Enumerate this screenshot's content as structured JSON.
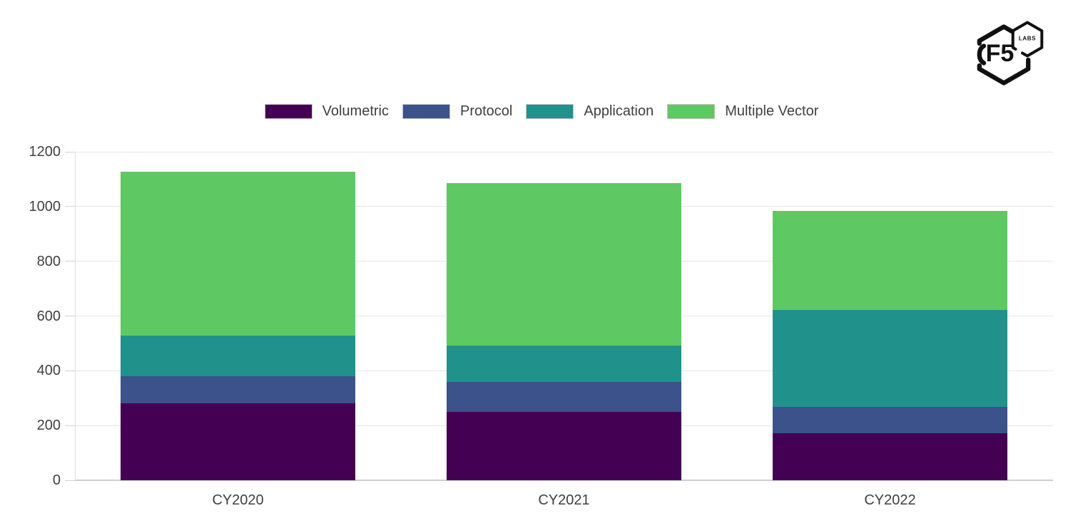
{
  "brand": {
    "name": "F5",
    "sub": "LABS"
  },
  "chart_data": {
    "type": "bar",
    "stacked": true,
    "title": "",
    "xlabel": "",
    "ylabel": "",
    "categories": [
      "CY2020",
      "CY2021",
      "CY2022"
    ],
    "series": [
      {
        "name": "Volumetric",
        "color": "#440154",
        "values": [
          280,
          250,
          171
        ]
      },
      {
        "name": "Protocol",
        "color": "#3b528b",
        "values": [
          101,
          110,
          96
        ]
      },
      {
        "name": "Application",
        "color": "#21918c",
        "values": [
          147,
          133,
          355
        ]
      },
      {
        "name": "Multiple Vector",
        "color": "#5ec962",
        "values": [
          598,
          593,
          362
        ]
      }
    ],
    "stack_totals": [
      1126,
      1086,
      984
    ],
    "ylim": [
      0,
      1200
    ],
    "yticks": [
      0,
      200,
      400,
      600,
      800,
      1000,
      1200
    ],
    "grid": true,
    "legend_position": "top"
  },
  "colors": {
    "grid": "#e6e6e6",
    "axis": "#cfcfcf",
    "text": "#404040",
    "swatch_border": "#c4c4c4",
    "logo": "#111111"
  }
}
